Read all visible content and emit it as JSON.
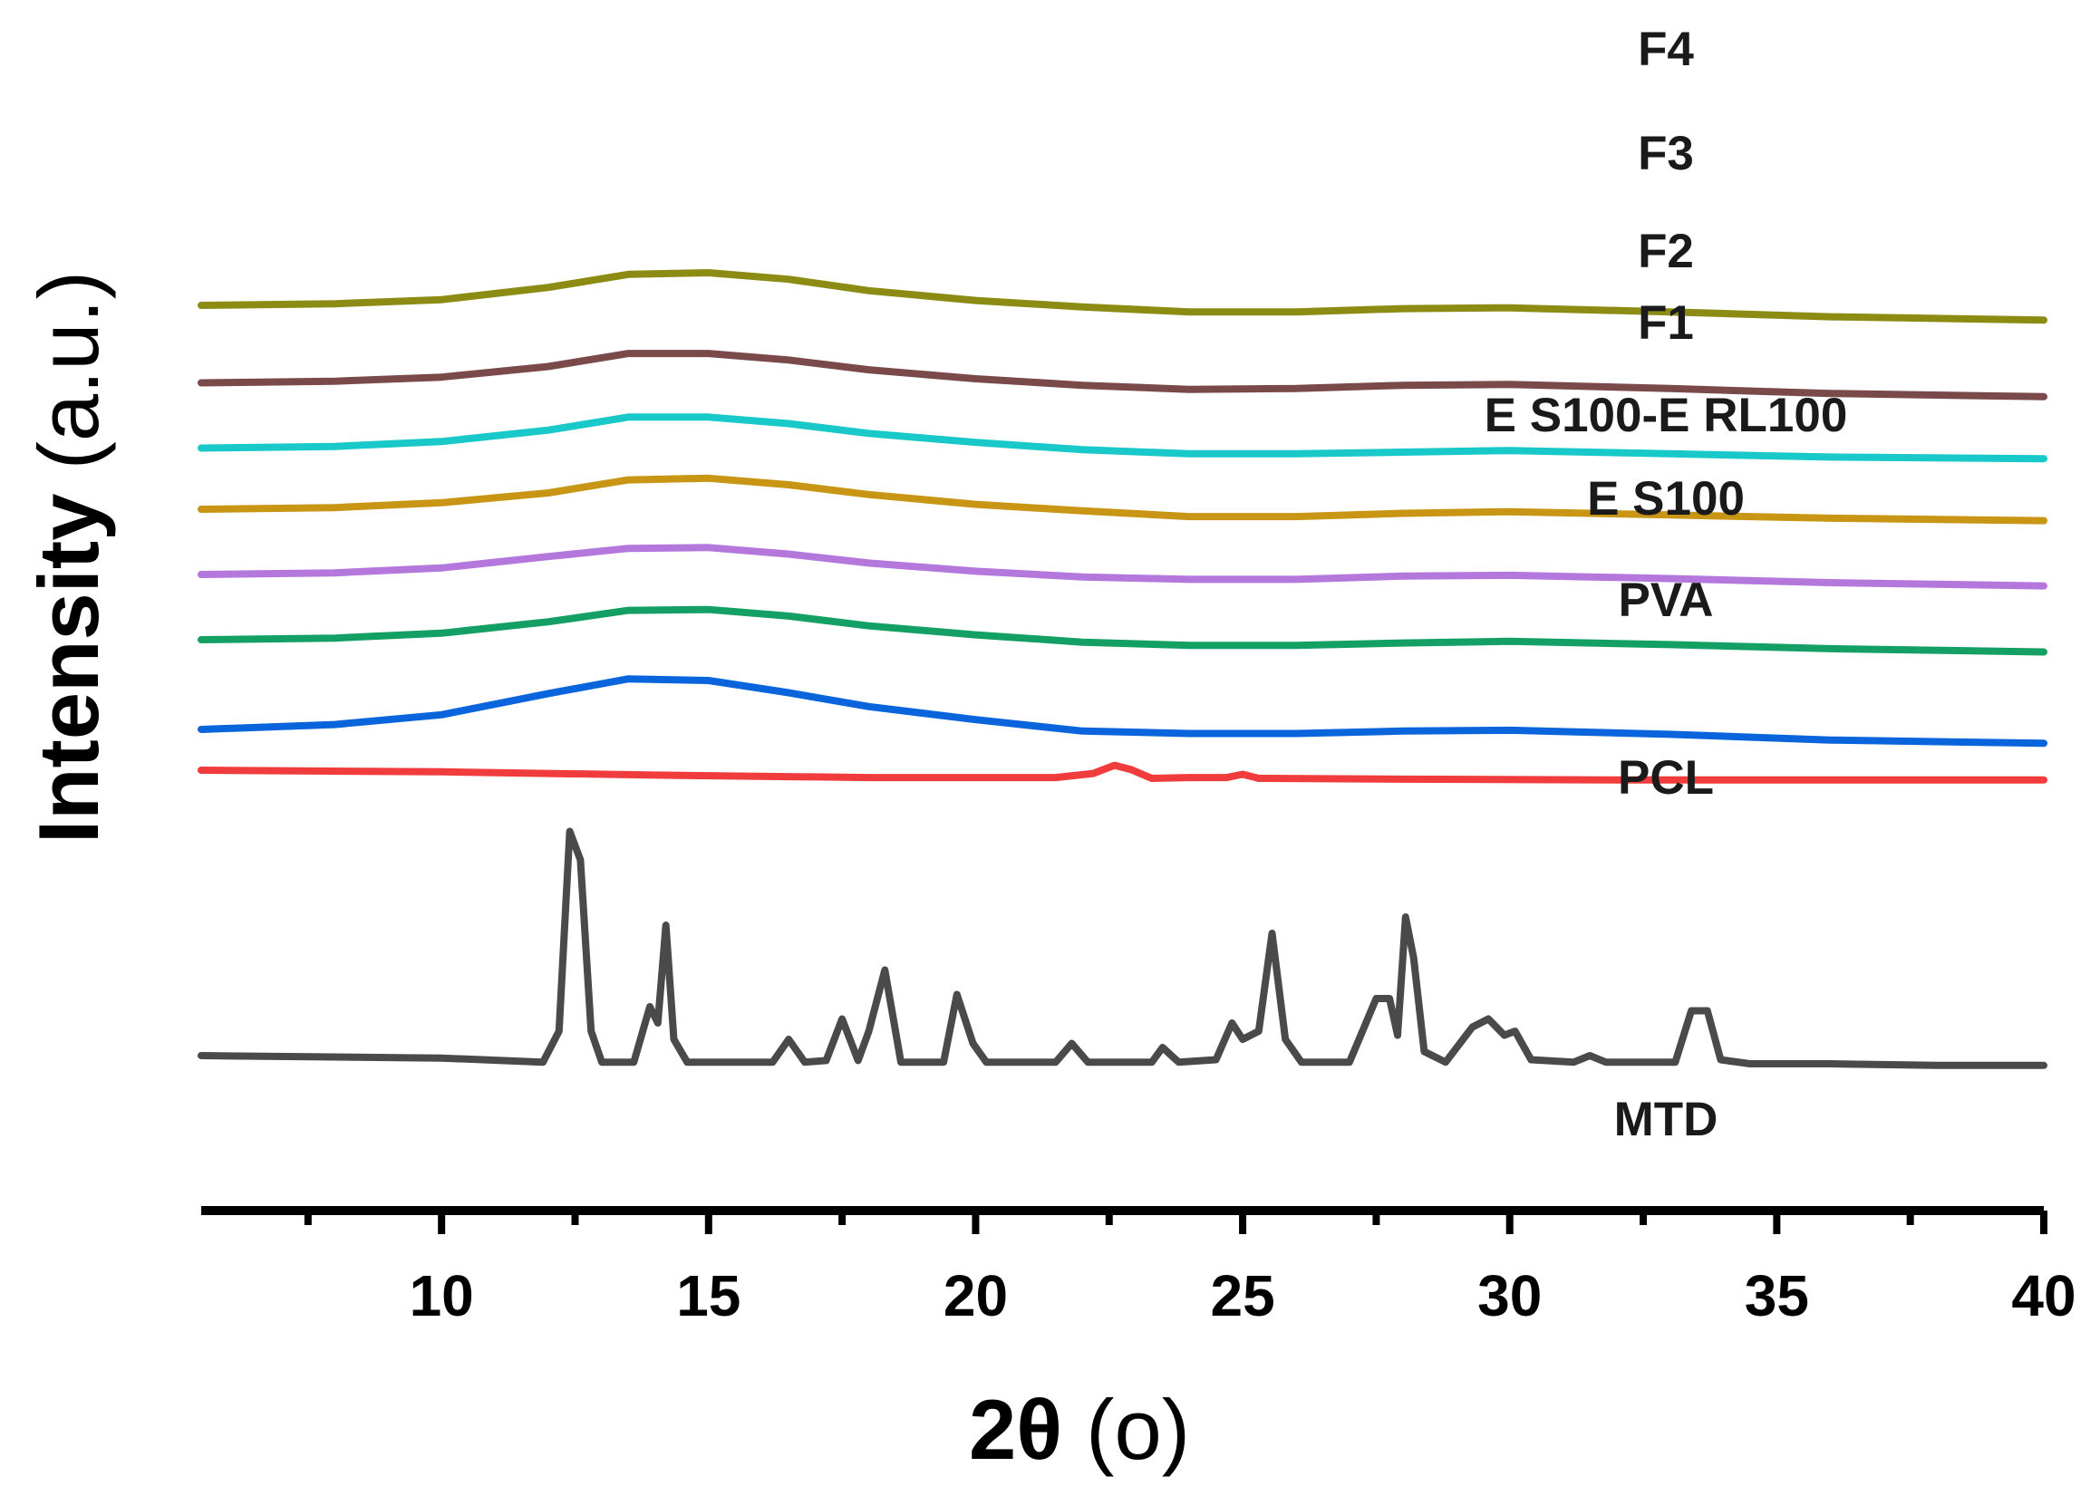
{
  "chart_data": {
    "type": "line",
    "title": "",
    "xlabel": "2θ",
    "xlabel_unit": "(o)",
    "ylabel": "Intensity",
    "ylabel_unit": "(a.u.)",
    "xlim": [
      5.5,
      40
    ],
    "x_ticks": [
      "10",
      "15",
      "20",
      "25",
      "30",
      "35",
      "40"
    ],
    "y_ticks": [],
    "grid": false,
    "legend": "none (series labeled inline, stacked vertically)",
    "stacked_offset": true,
    "series": [
      {
        "name": "F4",
        "color": "#8c8c14",
        "offset": 9.2,
        "points": [
          [
            5.5,
            0.0
          ],
          [
            8,
            0.02
          ],
          [
            10,
            0.07
          ],
          [
            12,
            0.22
          ],
          [
            13.5,
            0.38
          ],
          [
            15,
            0.4
          ],
          [
            16.5,
            0.32
          ],
          [
            18,
            0.18
          ],
          [
            20,
            0.06
          ],
          [
            22,
            -0.02
          ],
          [
            24,
            -0.08
          ],
          [
            26,
            -0.08
          ],
          [
            28,
            -0.04
          ],
          [
            30,
            -0.03
          ],
          [
            33,
            -0.08
          ],
          [
            36,
            -0.14
          ],
          [
            40,
            -0.18
          ]
        ]
      },
      {
        "name": "F3",
        "color": "#7a4a4a",
        "offset": 8.25,
        "points": [
          [
            5.5,
            0.0
          ],
          [
            8,
            0.02
          ],
          [
            10,
            0.07
          ],
          [
            12,
            0.2
          ],
          [
            13.5,
            0.36
          ],
          [
            15,
            0.36
          ],
          [
            16.5,
            0.28
          ],
          [
            18,
            0.16
          ],
          [
            20,
            0.05
          ],
          [
            22,
            -0.03
          ],
          [
            24,
            -0.08
          ],
          [
            26,
            -0.07
          ],
          [
            28,
            -0.03
          ],
          [
            30,
            -0.02
          ],
          [
            33,
            -0.07
          ],
          [
            36,
            -0.13
          ],
          [
            40,
            -0.17
          ]
        ]
      },
      {
        "name": "F2",
        "color": "#19c8c8",
        "offset": 7.45,
        "points": [
          [
            5.5,
            0.0
          ],
          [
            8,
            0.02
          ],
          [
            10,
            0.08
          ],
          [
            12,
            0.22
          ],
          [
            13.5,
            0.38
          ],
          [
            15,
            0.38
          ],
          [
            16.5,
            0.3
          ],
          [
            18,
            0.18
          ],
          [
            20,
            0.07
          ],
          [
            22,
            -0.02
          ],
          [
            24,
            -0.07
          ],
          [
            26,
            -0.07
          ],
          [
            28,
            -0.05
          ],
          [
            30,
            -0.03
          ],
          [
            33,
            -0.07
          ],
          [
            36,
            -0.11
          ],
          [
            40,
            -0.13
          ]
        ]
      },
      {
        "name": "F1",
        "color": "#c89614",
        "offset": 6.7,
        "points": [
          [
            5.5,
            0.0
          ],
          [
            8,
            0.02
          ],
          [
            10,
            0.08
          ],
          [
            12,
            0.2
          ],
          [
            13.5,
            0.36
          ],
          [
            15,
            0.38
          ],
          [
            16.5,
            0.3
          ],
          [
            18,
            0.18
          ],
          [
            20,
            0.06
          ],
          [
            22,
            -0.02
          ],
          [
            24,
            -0.09
          ],
          [
            26,
            -0.09
          ],
          [
            28,
            -0.05
          ],
          [
            30,
            -0.03
          ],
          [
            33,
            -0.07
          ],
          [
            36,
            -0.11
          ],
          [
            40,
            -0.14
          ]
        ]
      },
      {
        "name": "E S100-E RL100",
        "color": "#b478dc",
        "offset": 5.9,
        "points": [
          [
            5.5,
            0.0
          ],
          [
            8,
            0.02
          ],
          [
            10,
            0.08
          ],
          [
            12,
            0.22
          ],
          [
            13.5,
            0.32
          ],
          [
            15,
            0.33
          ],
          [
            16.5,
            0.25
          ],
          [
            18,
            0.14
          ],
          [
            20,
            0.04
          ],
          [
            22,
            -0.03
          ],
          [
            24,
            -0.06
          ],
          [
            26,
            -0.06
          ],
          [
            28,
            -0.02
          ],
          [
            30,
            -0.01
          ],
          [
            33,
            -0.05
          ],
          [
            36,
            -0.1
          ],
          [
            40,
            -0.14
          ]
        ]
      },
      {
        "name": "E S100",
        "color": "#14a064",
        "offset": 5.1,
        "points": [
          [
            5.5,
            0.0
          ],
          [
            8,
            0.02
          ],
          [
            10,
            0.08
          ],
          [
            12,
            0.22
          ],
          [
            13.5,
            0.36
          ],
          [
            15,
            0.37
          ],
          [
            16.5,
            0.29
          ],
          [
            18,
            0.17
          ],
          [
            20,
            0.06
          ],
          [
            22,
            -0.03
          ],
          [
            24,
            -0.07
          ],
          [
            26,
            -0.07
          ],
          [
            28,
            -0.04
          ],
          [
            30,
            -0.02
          ],
          [
            33,
            -0.06
          ],
          [
            36,
            -0.11
          ],
          [
            40,
            -0.15
          ]
        ]
      },
      {
        "name": "PVA",
        "color": "#0a64dc",
        "offset": 4.0,
        "points": [
          [
            5.5,
            0.0
          ],
          [
            8,
            0.06
          ],
          [
            10,
            0.18
          ],
          [
            12,
            0.44
          ],
          [
            13.5,
            0.62
          ],
          [
            15,
            0.6
          ],
          [
            16.5,
            0.45
          ],
          [
            18,
            0.28
          ],
          [
            20,
            0.12
          ],
          [
            22,
            -0.02
          ],
          [
            24,
            -0.05
          ],
          [
            26,
            -0.05
          ],
          [
            28,
            -0.02
          ],
          [
            30,
            -0.01
          ],
          [
            33,
            -0.06
          ],
          [
            36,
            -0.13
          ],
          [
            40,
            -0.17
          ]
        ]
      },
      {
        "name": "PCL",
        "color": "#f03c3c",
        "offset": 3.5,
        "points": [
          [
            5.5,
            0.0
          ],
          [
            10,
            -0.02
          ],
          [
            14,
            -0.06
          ],
          [
            18,
            -0.09
          ],
          [
            21.5,
            -0.09
          ],
          [
            22.2,
            -0.04
          ],
          [
            22.6,
            0.06
          ],
          [
            22.9,
            0.01
          ],
          [
            23.3,
            -0.1
          ],
          [
            24,
            -0.09
          ],
          [
            24.7,
            -0.09
          ],
          [
            25,
            -0.05
          ],
          [
            25.3,
            -0.1
          ],
          [
            28,
            -0.11
          ],
          [
            32,
            -0.12
          ],
          [
            36,
            -0.12
          ],
          [
            40,
            -0.12
          ]
        ]
      },
      {
        "name": "MTD",
        "color": "#4a4a4a",
        "offset": 0.0,
        "points": [
          [
            5.5,
            0.0
          ],
          [
            10,
            -0.03
          ],
          [
            11.9,
            -0.08
          ],
          [
            12.2,
            0.3
          ],
          [
            12.4,
            2.75
          ],
          [
            12.6,
            2.4
          ],
          [
            12.8,
            0.3
          ],
          [
            13.0,
            -0.08
          ],
          [
            13.6,
            -0.08
          ],
          [
            13.9,
            0.6
          ],
          [
            14.05,
            0.4
          ],
          [
            14.2,
            1.6
          ],
          [
            14.35,
            0.2
          ],
          [
            14.6,
            -0.08
          ],
          [
            16.2,
            -0.08
          ],
          [
            16.5,
            0.2
          ],
          [
            16.8,
            -0.08
          ],
          [
            17.2,
            -0.06
          ],
          [
            17.5,
            0.45
          ],
          [
            17.8,
            -0.06
          ],
          [
            18.0,
            0.3
          ],
          [
            18.3,
            1.05
          ],
          [
            18.6,
            -0.08
          ],
          [
            19.4,
            -0.08
          ],
          [
            19.65,
            0.75
          ],
          [
            19.95,
            0.15
          ],
          [
            20.2,
            -0.08
          ],
          [
            21.5,
            -0.08
          ],
          [
            21.8,
            0.15
          ],
          [
            22.1,
            -0.08
          ],
          [
            23.3,
            -0.08
          ],
          [
            23.5,
            0.1
          ],
          [
            23.8,
            -0.08
          ],
          [
            24.5,
            -0.05
          ],
          [
            24.8,
            0.4
          ],
          [
            25.0,
            0.2
          ],
          [
            25.3,
            0.3
          ],
          [
            25.55,
            1.5
          ],
          [
            25.8,
            0.2
          ],
          [
            26.1,
            -0.08
          ],
          [
            27.0,
            -0.08
          ],
          [
            27.5,
            0.7
          ],
          [
            27.75,
            0.7
          ],
          [
            27.9,
            0.25
          ],
          [
            28.05,
            1.7
          ],
          [
            28.2,
            1.2
          ],
          [
            28.4,
            0.05
          ],
          [
            28.8,
            -0.08
          ],
          [
            29.3,
            0.35
          ],
          [
            29.6,
            0.45
          ],
          [
            29.9,
            0.25
          ],
          [
            30.1,
            0.3
          ],
          [
            30.4,
            -0.05
          ],
          [
            31.2,
            -0.08
          ],
          [
            31.5,
            0.0
          ],
          [
            31.8,
            -0.08
          ],
          [
            33.1,
            -0.08
          ],
          [
            33.4,
            0.55
          ],
          [
            33.7,
            0.55
          ],
          [
            33.95,
            -0.05
          ],
          [
            34.5,
            -0.1
          ],
          [
            36,
            -0.1
          ],
          [
            38,
            -0.12
          ],
          [
            40,
            -0.12
          ]
        ]
      }
    ]
  }
}
